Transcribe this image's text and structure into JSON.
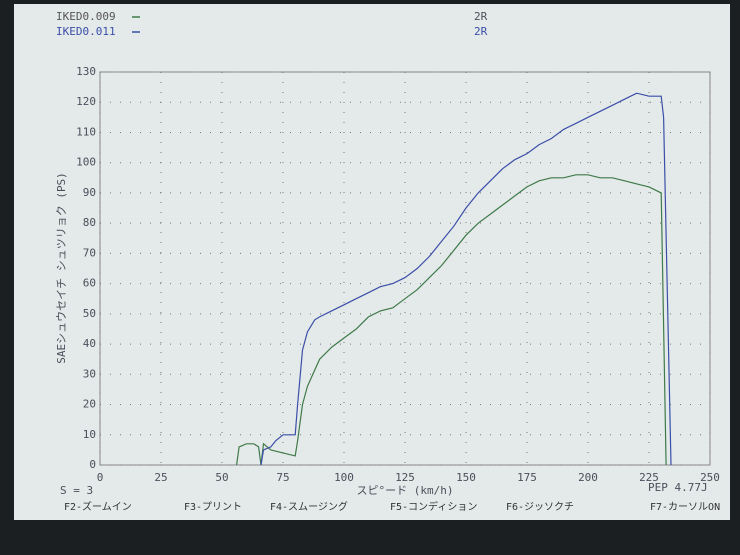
{
  "chart_data": {
    "type": "line",
    "ylabel": "SAEシュウセイチ シュツリョク (PS)",
    "xlabel": "スピ°ード (km/h)",
    "xlim": [
      0,
      250
    ],
    "xticks": [
      0,
      25,
      50,
      75,
      100,
      125,
      150,
      175,
      200,
      225,
      250
    ],
    "ylim": [
      0,
      130
    ],
    "yticks": [
      0,
      10,
      20,
      30,
      40,
      50,
      60,
      70,
      80,
      90,
      100,
      110,
      120,
      130
    ],
    "grid": true,
    "annotations": [
      "2R",
      "2R"
    ],
    "series": [
      {
        "name": "IKED0.009",
        "color": "#3f7a48",
        "x": [
          56,
          57,
          60,
          63,
          65,
          66,
          67,
          70,
          75,
          80,
          81,
          83,
          85,
          90,
          95,
          100,
          105,
          110,
          115,
          120,
          125,
          130,
          135,
          140,
          145,
          150,
          155,
          160,
          165,
          170,
          175,
          180,
          185,
          190,
          195,
          200,
          205,
          210,
          215,
          220,
          225,
          230,
          232
        ],
        "values": [
          0,
          6,
          7,
          7,
          6,
          0,
          7,
          5,
          4,
          3,
          8,
          20,
          26,
          35,
          39,
          42,
          45,
          49,
          51,
          52,
          55,
          58,
          62,
          66,
          71,
          76,
          80,
          83,
          86,
          89,
          92,
          94,
          95,
          95,
          96,
          96,
          95,
          95,
          94,
          93,
          92,
          90,
          0
        ]
      },
      {
        "name": "IKED0.011",
        "color": "#3b4fa8",
        "x": [
          66,
          67,
          70,
          72,
          75,
          80,
          81,
          83,
          85,
          88,
          90,
          95,
          100,
          105,
          110,
          115,
          120,
          125,
          130,
          135,
          140,
          145,
          150,
          155,
          160,
          165,
          170,
          175,
          180,
          185,
          190,
          195,
          200,
          205,
          210,
          215,
          220,
          225,
          230,
          231,
          234
        ],
        "values": [
          0,
          5,
          6,
          8,
          10,
          10,
          20,
          38,
          44,
          48,
          49,
          51,
          53,
          55,
          57,
          59,
          60,
          62,
          65,
          69,
          74,
          79,
          85,
          90,
          94,
          98,
          101,
          103,
          106,
          108,
          111,
          113,
          115,
          117,
          119,
          121,
          123,
          122,
          122,
          115,
          0
        ]
      }
    ]
  },
  "status": {
    "smoothing": "S = 3",
    "pep": "PEP 4.77J"
  },
  "menu": [
    "F2-ズームイン",
    "F3-プリント",
    "F4-スムージング",
    "F5-コンディション",
    "F6-ジッソクチ",
    "F7-カーソルON"
  ]
}
